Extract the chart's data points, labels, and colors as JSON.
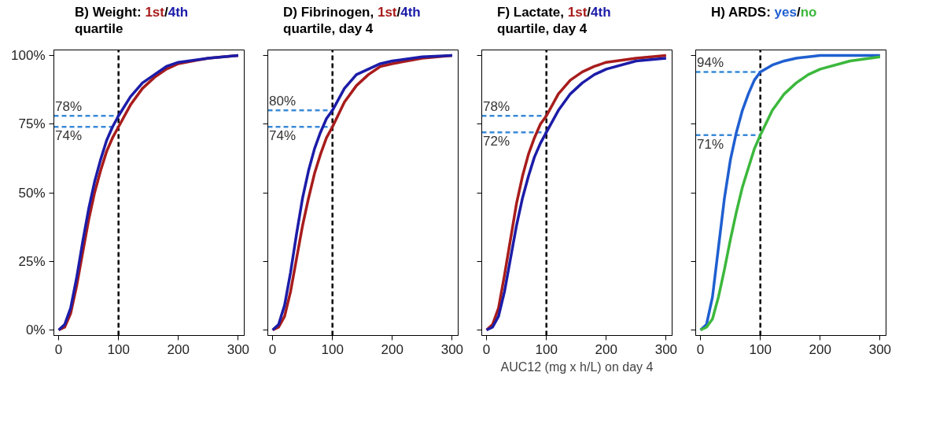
{
  "chart_data": [
    {
      "type": "line",
      "title": "B) Weight:",
      "subtitle": "quartile",
      "x": [
        0,
        10,
        20,
        30,
        40,
        50,
        60,
        70,
        80,
        90,
        100,
        120,
        140,
        160,
        180,
        200,
        250,
        300
      ],
      "series": [
        {
          "name": "1st",
          "color": "#a81c1c",
          "values": [
            0,
            1,
            6,
            16,
            28,
            40,
            50,
            58,
            65,
            70,
            74,
            82,
            88,
            92,
            95,
            97,
            99,
            100
          ]
        },
        {
          "name": "4th",
          "color": "#1c1ca8",
          "values": [
            0,
            2,
            8,
            19,
            32,
            44,
            54,
            62,
            69,
            74,
            78,
            85,
            90,
            93,
            96,
            97.5,
            99,
            100
          ]
        }
      ],
      "xlim": [
        -8,
        310
      ],
      "ylim": [
        -2,
        102
      ],
      "xticks": [
        0,
        100,
        200,
        300
      ],
      "yticks": [
        {
          "value": 0,
          "label": "0%"
        },
        {
          "value": 25,
          "label": "25%"
        },
        {
          "value": 50,
          "label": "50%"
        },
        {
          "value": 75,
          "label": "75%"
        },
        {
          "value": 100,
          "label": "100%"
        }
      ],
      "ref_lines": [
        {
          "axis": "x",
          "value": 100,
          "color": "#000000",
          "line_style": "dashed"
        },
        {
          "axis": "y",
          "value": 78,
          "label": "78%",
          "color": "#3a8ad8",
          "line_style": "dashed"
        },
        {
          "axis": "y",
          "value": 74,
          "label": "74%",
          "color": "#3a8ad8",
          "line_style": "dashed"
        }
      ],
      "grid": false,
      "legend": "top",
      "annotations": [
        "/"
      ]
    },
    {
      "type": "line",
      "title": "D) Fibrinogen,",
      "subtitle": "quartile, day 4",
      "x": [
        0,
        10,
        20,
        30,
        40,
        50,
        60,
        70,
        80,
        90,
        100,
        120,
        140,
        160,
        180,
        200,
        250,
        300
      ],
      "series": [
        {
          "name": "1st",
          "color": "#a81c1c",
          "values": [
            0,
            1,
            5,
            14,
            26,
            38,
            48,
            57,
            64,
            70,
            74,
            83,
            89,
            93,
            96,
            97,
            99,
            100
          ]
        },
        {
          "name": "4th",
          "color": "#1c1ca8",
          "values": [
            0,
            2,
            9,
            21,
            35,
            48,
            58,
            66,
            72,
            77,
            80,
            88,
            93,
            95,
            97,
            98,
            99.5,
            100
          ]
        }
      ],
      "xlim": [
        -8,
        310
      ],
      "ylim": [
        -2,
        102
      ],
      "xticks": [
        0,
        100,
        200,
        300
      ],
      "yticks": [
        0,
        25,
        50,
        75,
        100
      ],
      "tick_labels": "x",
      "ref_lines": [
        {
          "axis": "x",
          "value": 100,
          "color": "#000000",
          "line_style": "dashed"
        },
        {
          "axis": "y",
          "value": 80,
          "label": "80%",
          "color": "#3a8ad8",
          "line_style": "dashed"
        },
        {
          "axis": "y",
          "value": 74,
          "label": "74%",
          "color": "#3a8ad8",
          "line_style": "dashed"
        }
      ],
      "grid": false,
      "legend": "top",
      "annotations": [
        "/"
      ]
    },
    {
      "type": "line",
      "title": "F) Lactate,",
      "subtitle": "quartile, day 4",
      "xlabel": "AUC12 (mg x h/L) on day 4",
      "x": [
        0,
        10,
        20,
        30,
        40,
        50,
        60,
        70,
        80,
        90,
        100,
        120,
        140,
        160,
        180,
        200,
        250,
        300
      ],
      "series": [
        {
          "name": "1st",
          "color": "#a81c1c",
          "values": [
            0,
            2,
            8,
            20,
            33,
            46,
            56,
            64,
            70,
            75,
            78,
            86,
            91,
            94,
            96,
            97.5,
            99,
            100
          ]
        },
        {
          "name": "4th",
          "color": "#1c1ca8",
          "values": [
            0,
            1,
            5,
            14,
            26,
            38,
            48,
            56,
            63,
            68,
            72,
            80,
            86,
            90,
            93,
            95,
            98,
            99
          ]
        }
      ],
      "xlim": [
        -8,
        310
      ],
      "ylim": [
        -2,
        102
      ],
      "xticks": [
        0,
        100,
        200,
        300
      ],
      "yticks": [
        0,
        25,
        50,
        75,
        100
      ],
      "tick_labels": "x",
      "ref_lines": [
        {
          "axis": "x",
          "value": 100,
          "color": "#000000",
          "line_style": "dashed"
        },
        {
          "axis": "y",
          "value": 78,
          "label": "78%",
          "color": "#3a8ad8",
          "line_style": "dashed"
        },
        {
          "axis": "y",
          "value": 72,
          "label": "72%",
          "color": "#3a8ad8",
          "line_style": "dashed"
        }
      ],
      "grid": false,
      "legend": "top",
      "annotations": [
        "/"
      ]
    },
    {
      "type": "line",
      "title": "H) ARDS:",
      "x": [
        0,
        10,
        20,
        30,
        40,
        50,
        60,
        70,
        80,
        90,
        100,
        120,
        140,
        160,
        180,
        200,
        250,
        300
      ],
      "series": [
        {
          "name": "yes",
          "color": "#1f5fd0",
          "values": [
            0,
            2,
            12,
            30,
            48,
            62,
            72,
            80,
            86,
            91,
            94,
            96.5,
            98,
            99,
            99.5,
            100,
            100,
            100
          ]
        },
        {
          "name": "no",
          "color": "#3cb83c",
          "values": [
            0,
            1,
            4,
            12,
            22,
            33,
            43,
            52,
            59,
            66,
            71,
            80,
            86,
            90,
            93,
            95,
            98,
            99.5
          ]
        }
      ],
      "xlim": [
        -8,
        310
      ],
      "ylim": [
        -2,
        102
      ],
      "xticks": [
        0,
        100,
        200,
        300
      ],
      "yticks": [
        0,
        25,
        50,
        75,
        100
      ],
      "tick_labels": "x",
      "ref_lines": [
        {
          "axis": "x",
          "value": 100,
          "color": "#000000",
          "line_style": "dashed"
        },
        {
          "axis": "y",
          "value": 94,
          "label": "94%",
          "color": "#3a8ad8",
          "line_style": "dashed"
        },
        {
          "axis": "y",
          "value": 71,
          "label": "71%",
          "color": "#3a8ad8",
          "line_style": "dashed"
        }
      ],
      "grid": false,
      "legend": "top",
      "annotations": [
        "/"
      ]
    }
  ]
}
